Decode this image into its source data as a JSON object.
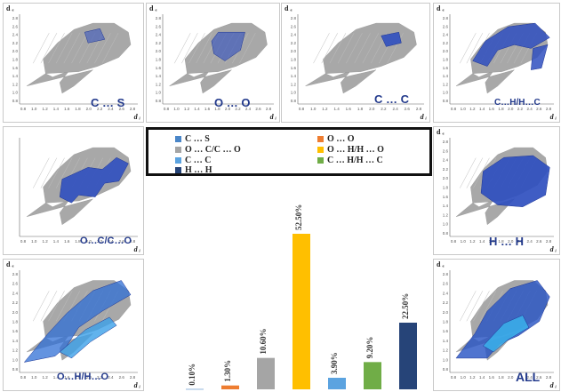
{
  "axis_letters": {
    "de": "d ₑ",
    "di": "d ᵢ"
  },
  "panels": [
    {
      "id": "cs",
      "label": "C … S"
    },
    {
      "id": "oo",
      "label": "O … O"
    },
    {
      "id": "cc",
      "label": "C … C"
    },
    {
      "id": "chhc",
      "label": "C…H/H…C"
    },
    {
      "id": "occo",
      "label": "O…C/C…O"
    },
    {
      "id": "hh",
      "label": "H … H"
    },
    {
      "id": "ohho",
      "label": "O…H/H…O"
    },
    {
      "id": "all",
      "label": "ALL"
    }
  ],
  "legend": [
    {
      "label": "C … S",
      "color": "#4a86c8"
    },
    {
      "label": "O … O",
      "color": "#ee7d31"
    },
    {
      "label": "O … C/C … O",
      "color": "#a5a5a5"
    },
    {
      "label": "O … H/H … O",
      "color": "#ffbf00"
    },
    {
      "label": "C … C",
      "color": "#5ba3e0"
    },
    {
      "label": "C … H/H … C",
      "color": "#70ad47"
    },
    {
      "label": "H … H",
      "color": "#264478"
    }
  ],
  "chart_data": {
    "type": "bar",
    "categories": [
      "C … S",
      "O … O",
      "O … C/C … O",
      "O … H/H … O",
      "C … C",
      "C … H/H … C",
      "H … H"
    ],
    "values": [
      0.1,
      1.3,
      10.6,
      52.5,
      3.9,
      9.2,
      22.5
    ],
    "value_labels": [
      "0.10%",
      "1.30%",
      "10.60%",
      "52.50%",
      "3.90%",
      "9.20%",
      "22.50%"
    ],
    "colors": [
      "#4a86c8",
      "#ee7d31",
      "#a5a5a5",
      "#ffbf00",
      "#5ba3e0",
      "#70ad47",
      "#264478"
    ],
    "ylim": [
      0,
      60
    ],
    "grid": false,
    "legend_position": "top"
  }
}
